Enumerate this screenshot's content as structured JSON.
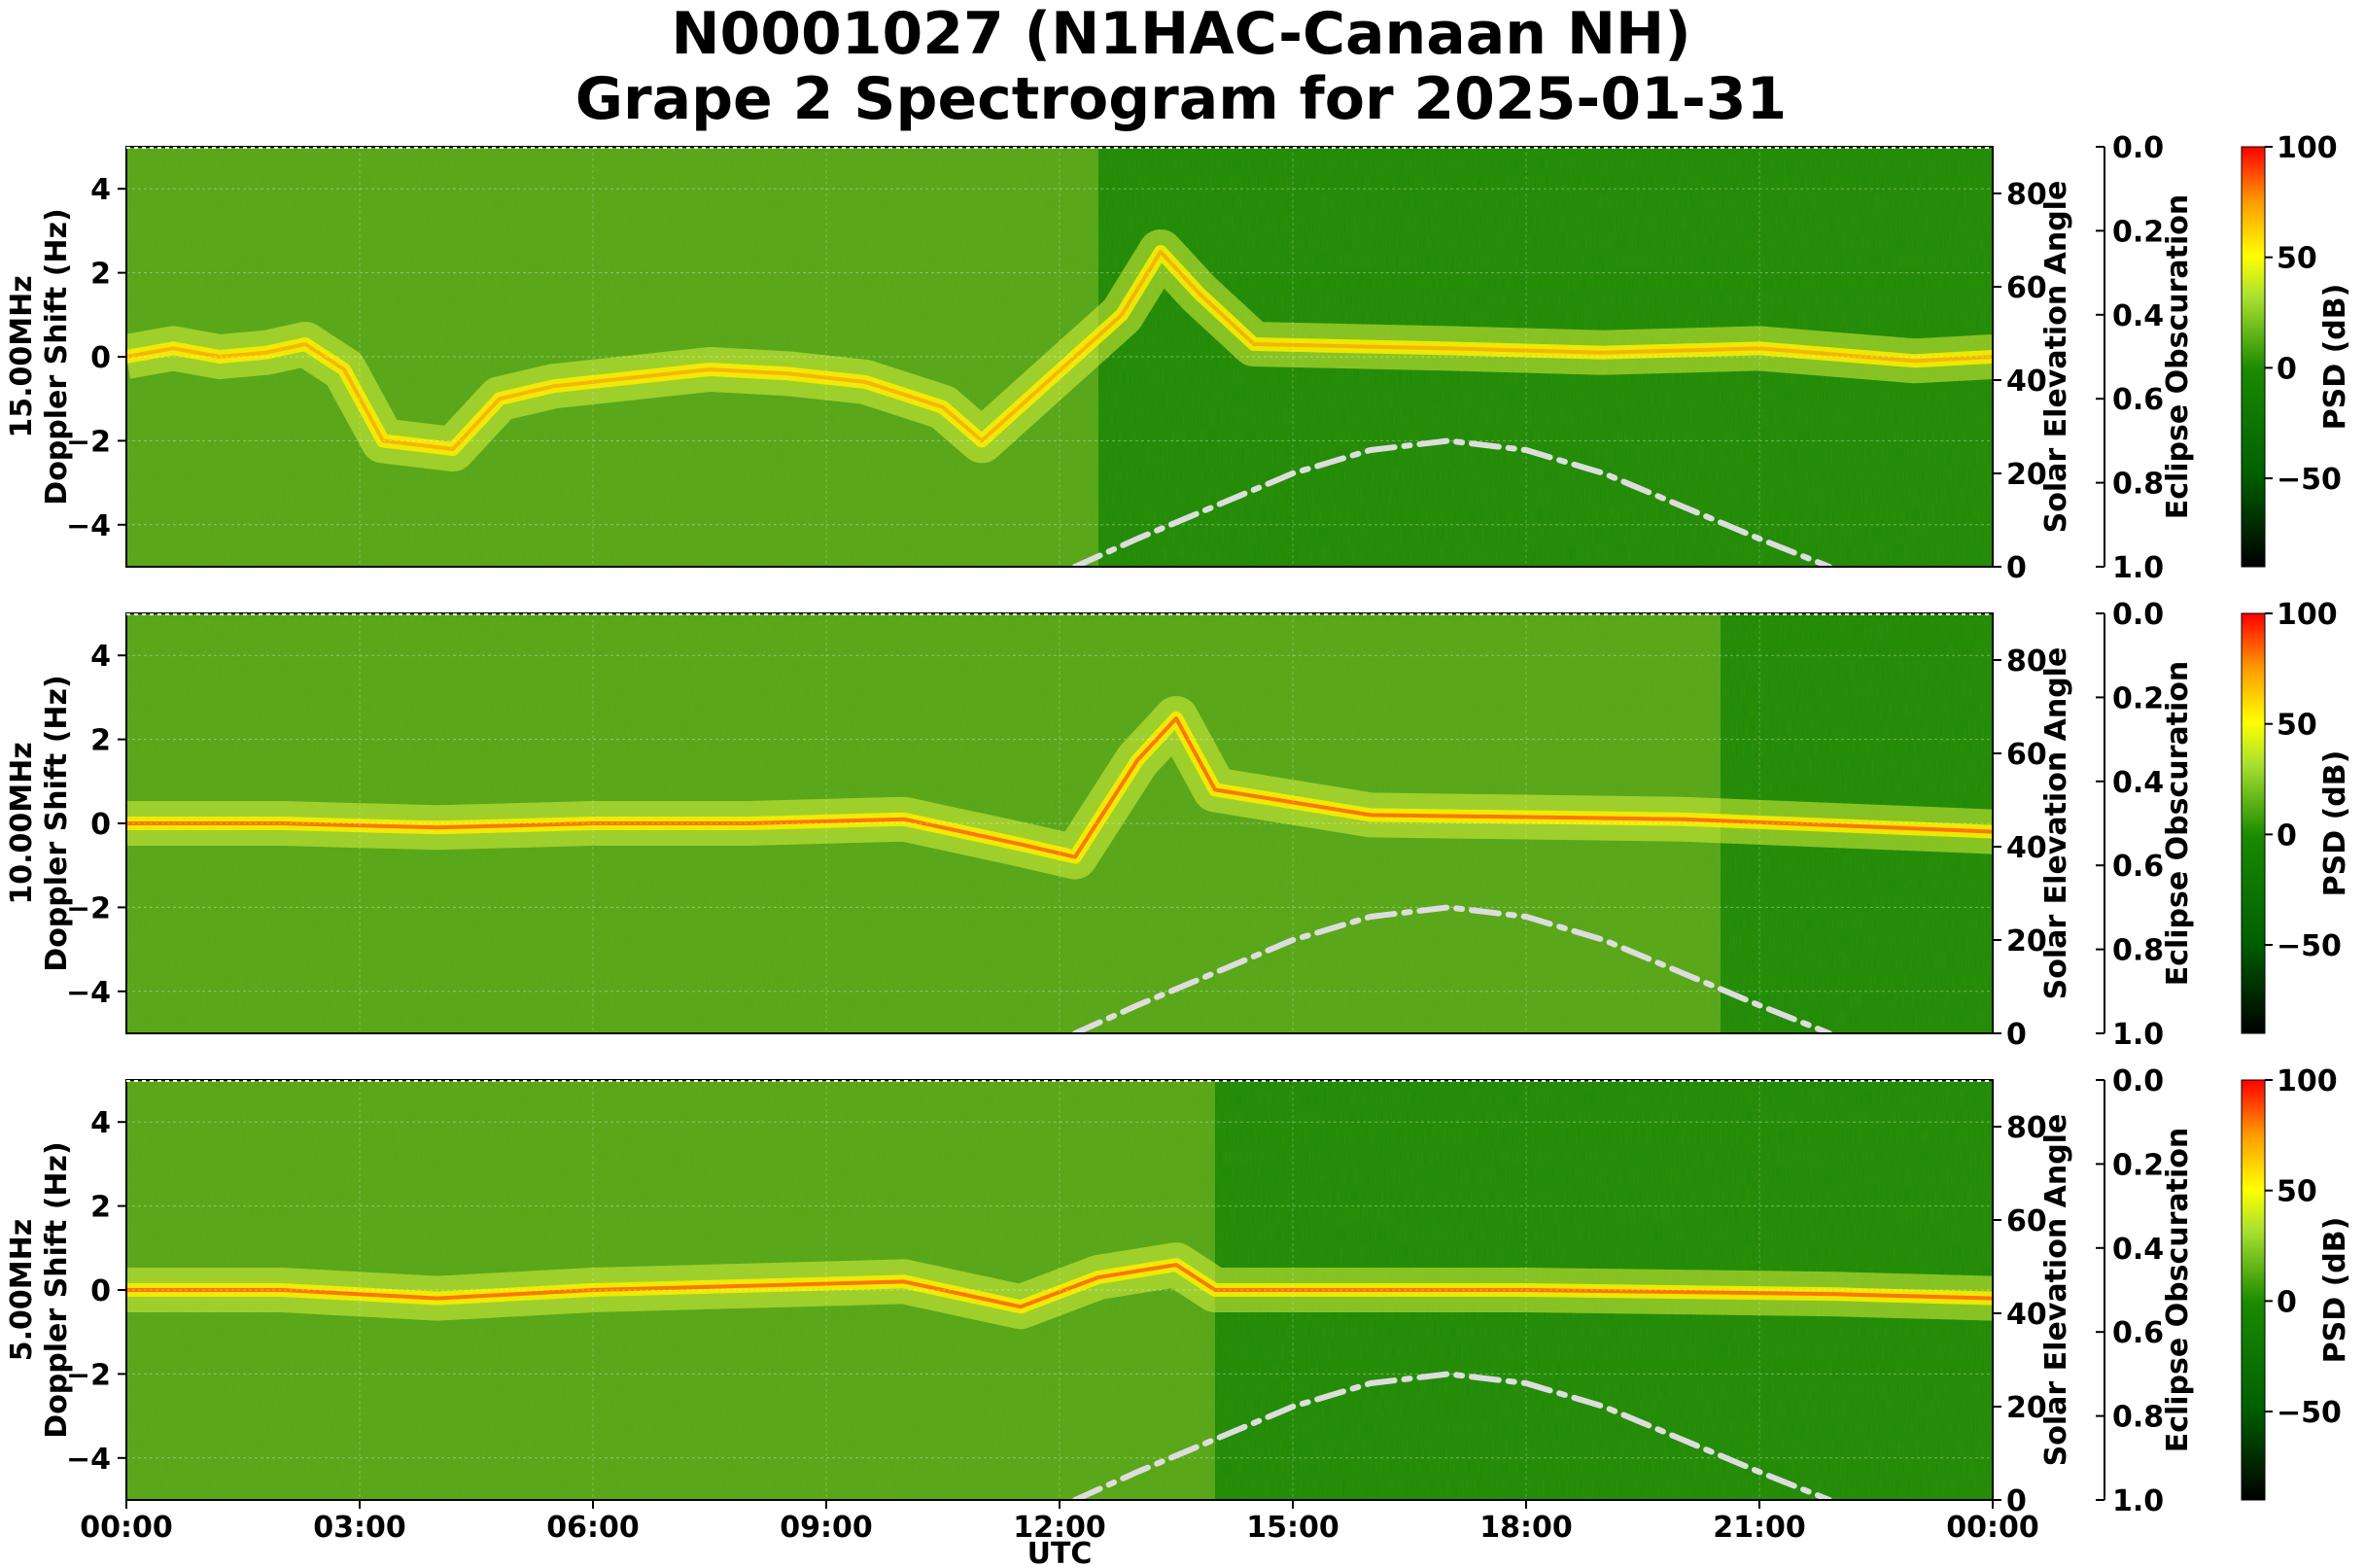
{
  "title": {
    "line1": "N0001027 (N1HAC-Canaan NH)",
    "line2": "Grape 2 Spectrogram for 2025-01-31"
  },
  "x_axis": {
    "label": "UTC",
    "ticks": [
      "00:00",
      "03:00",
      "06:00",
      "09:00",
      "12:00",
      "15:00",
      "18:00",
      "21:00",
      "00:00"
    ],
    "range_hours": [
      0,
      24
    ]
  },
  "chart_data": [
    {
      "type": "heatmap",
      "frequency_label": "15.00MHz",
      "ylabel": "Doppler Shift (Hz)",
      "ylim": [
        -5,
        5
      ],
      "y_ticks": [
        "4",
        "2",
        "0",
        "−2",
        "−4"
      ],
      "y_tick_values": [
        4,
        2,
        0,
        -2,
        -4
      ],
      "signal_trace": [
        {
          "hour": 0.0,
          "doppler": 0.0
        },
        {
          "hour": 0.6,
          "doppler": 0.2
        },
        {
          "hour": 1.2,
          "doppler": 0.0
        },
        {
          "hour": 1.8,
          "doppler": 0.1
        },
        {
          "hour": 2.3,
          "doppler": 0.3
        },
        {
          "hour": 2.8,
          "doppler": -0.3
        },
        {
          "hour": 3.3,
          "doppler": -2.0
        },
        {
          "hour": 4.2,
          "doppler": -2.2
        },
        {
          "hour": 4.8,
          "doppler": -1.0
        },
        {
          "hour": 5.5,
          "doppler": -0.7
        },
        {
          "hour": 6.5,
          "doppler": -0.5
        },
        {
          "hour": 7.5,
          "doppler": -0.3
        },
        {
          "hour": 8.5,
          "doppler": -0.4
        },
        {
          "hour": 9.5,
          "doppler": -0.6
        },
        {
          "hour": 10.5,
          "doppler": -1.2
        },
        {
          "hour": 11.0,
          "doppler": -2.0
        },
        {
          "hour": 12.8,
          "doppler": 1.0
        },
        {
          "hour": 13.3,
          "doppler": 2.5
        },
        {
          "hour": 13.8,
          "doppler": 1.5
        },
        {
          "hour": 14.5,
          "doppler": 0.3
        },
        {
          "hour": 17.0,
          "doppler": 0.2
        },
        {
          "hour": 19.0,
          "doppler": 0.1
        },
        {
          "hour": 21.0,
          "doppler": 0.2
        },
        {
          "hour": 23.0,
          "doppler": -0.1
        },
        {
          "hour": 24.0,
          "doppler": 0.0
        }
      ],
      "background_quiet_from_hour": 12.5
    },
    {
      "type": "heatmap",
      "frequency_label": "10.00MHz",
      "ylabel": "Doppler Shift (Hz)",
      "ylim": [
        -5,
        5
      ],
      "y_ticks": [
        "4",
        "2",
        "0",
        "−2",
        "−4"
      ],
      "y_tick_values": [
        4,
        2,
        0,
        -2,
        -4
      ],
      "signal_trace": [
        {
          "hour": 0.0,
          "doppler": 0.0
        },
        {
          "hour": 2.0,
          "doppler": 0.0
        },
        {
          "hour": 4.0,
          "doppler": -0.1
        },
        {
          "hour": 6.0,
          "doppler": 0.0
        },
        {
          "hour": 8.0,
          "doppler": 0.0
        },
        {
          "hour": 10.0,
          "doppler": 0.1
        },
        {
          "hour": 11.5,
          "doppler": -0.5
        },
        {
          "hour": 12.2,
          "doppler": -0.8
        },
        {
          "hour": 13.0,
          "doppler": 1.5
        },
        {
          "hour": 13.5,
          "doppler": 2.5
        },
        {
          "hour": 14.0,
          "doppler": 0.8
        },
        {
          "hour": 16.0,
          "doppler": 0.2
        },
        {
          "hour": 20.0,
          "doppler": 0.1
        },
        {
          "hour": 24.0,
          "doppler": -0.2
        }
      ],
      "background_quiet_from_hour": 20.5
    },
    {
      "type": "heatmap",
      "frequency_label": "5.00MHz",
      "ylabel": "Doppler Shift (Hz)",
      "ylim": [
        -5,
        5
      ],
      "y_ticks": [
        "4",
        "2",
        "0",
        "−2",
        "−4"
      ],
      "y_tick_values": [
        4,
        2,
        0,
        -2,
        -4
      ],
      "signal_trace": [
        {
          "hour": 0.0,
          "doppler": 0.0
        },
        {
          "hour": 2.0,
          "doppler": 0.0
        },
        {
          "hour": 4.0,
          "doppler": -0.2
        },
        {
          "hour": 6.0,
          "doppler": 0.0
        },
        {
          "hour": 8.0,
          "doppler": 0.1
        },
        {
          "hour": 10.0,
          "doppler": 0.2
        },
        {
          "hour": 11.5,
          "doppler": -0.4
        },
        {
          "hour": 12.5,
          "doppler": 0.3
        },
        {
          "hour": 13.5,
          "doppler": 0.6
        },
        {
          "hour": 14.0,
          "doppler": 0.0
        },
        {
          "hour": 18.0,
          "doppler": 0.0
        },
        {
          "hour": 22.0,
          "doppler": -0.1
        },
        {
          "hour": 24.0,
          "doppler": -0.2
        }
      ],
      "background_quiet_from_hour": 14.0
    }
  ],
  "solar_elevation": {
    "label": "Solar Elevation Angle",
    "ylim": [
      0,
      90
    ],
    "ticks": [
      "80",
      "60",
      "40",
      "20",
      "0"
    ],
    "tick_values": [
      80,
      60,
      40,
      20,
      0
    ],
    "curve": [
      {
        "hour": 12.2,
        "deg": 0
      },
      {
        "hour": 13.0,
        "deg": 6
      },
      {
        "hour": 14.0,
        "deg": 13
      },
      {
        "hour": 15.0,
        "deg": 20
      },
      {
        "hour": 16.0,
        "deg": 25
      },
      {
        "hour": 17.0,
        "deg": 27
      },
      {
        "hour": 18.0,
        "deg": 25
      },
      {
        "hour": 19.0,
        "deg": 20
      },
      {
        "hour": 20.0,
        "deg": 13
      },
      {
        "hour": 21.0,
        "deg": 6
      },
      {
        "hour": 21.9,
        "deg": 0
      }
    ],
    "line_color": "#dddddd",
    "line_style": "dash-dot"
  },
  "eclipse_obscuration": {
    "label": "Eclipse Obscuration",
    "ylim": [
      0.0,
      1.0
    ],
    "ticks": [
      "0.0",
      "0.2",
      "0.4",
      "0.6",
      "0.8",
      "1.0"
    ],
    "tick_values": [
      0.0,
      0.2,
      0.4,
      0.6,
      0.8,
      1.0
    ]
  },
  "colorbar": {
    "label": "PSD (dB)",
    "range": [
      -90,
      100
    ],
    "ticks": [
      "100",
      "50",
      "0",
      "−50"
    ],
    "tick_values": [
      100,
      50,
      0,
      -50
    ],
    "colors": [
      "#000000",
      "#006400",
      "#008000",
      "#adff2f",
      "#ffff00",
      "#ff0000"
    ]
  }
}
